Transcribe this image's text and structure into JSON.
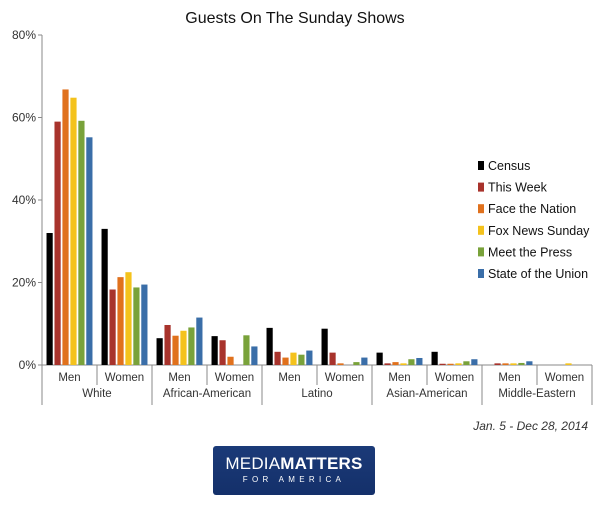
{
  "chart_data": {
    "type": "bar",
    "title": "Guests On The Sunday Shows",
    "xlabel": "",
    "ylabel": "",
    "ylim": [
      0,
      80
    ],
    "y_ticks": [
      "0%",
      "20%",
      "40%",
      "60%",
      "80%"
    ],
    "y_tick_values": [
      0,
      20,
      40,
      60,
      80
    ],
    "grid": false,
    "legend_position": "right",
    "groups": [
      "White",
      "African-American",
      "Latino",
      "Asian-American",
      "Middle-Eastern"
    ],
    "categories": [
      "Men",
      "Women",
      "Men",
      "Women",
      "Men",
      "Women",
      "Men",
      "Women",
      "Men",
      "Women"
    ],
    "series": [
      {
        "name": "Census",
        "color": "#000000",
        "values": [
          32,
          33,
          6.5,
          7,
          9,
          8.8,
          3,
          3.2,
          0,
          0
        ]
      },
      {
        "name": "This Week",
        "color": "#a8332c",
        "values": [
          59,
          18.3,
          9.7,
          6,
          3.2,
          3,
          0.4,
          0.3,
          0.4,
          0
        ]
      },
      {
        "name": "Face the Nation",
        "color": "#e0711d",
        "values": [
          66.8,
          21.3,
          7.1,
          2,
          1.8,
          0.4,
          0.7,
          0.3,
          0.4,
          0
        ]
      },
      {
        "name": "Fox News Sunday",
        "color": "#f4c21c",
        "values": [
          64.8,
          22.5,
          8.3,
          0,
          3,
          0,
          0.4,
          0.4,
          0.4,
          0.4
        ]
      },
      {
        "name": "Meet the Press",
        "color": "#79a23a",
        "values": [
          59.2,
          18.8,
          9.1,
          7.2,
          2.5,
          0.7,
          1.4,
          0.9,
          0.5,
          0
        ]
      },
      {
        "name": "State of the Union",
        "color": "#3a6ea8",
        "values": [
          55.2,
          19.5,
          11.5,
          4.5,
          3.5,
          1.8,
          1.7,
          1.4,
          0.9,
          0
        ]
      }
    ],
    "annotation": "Jan. 5 - Dec 28, 2014"
  },
  "logo": {
    "part1": "MEDIA",
    "part2": "MATTERS",
    "sub": "FOR AMERICA"
  }
}
